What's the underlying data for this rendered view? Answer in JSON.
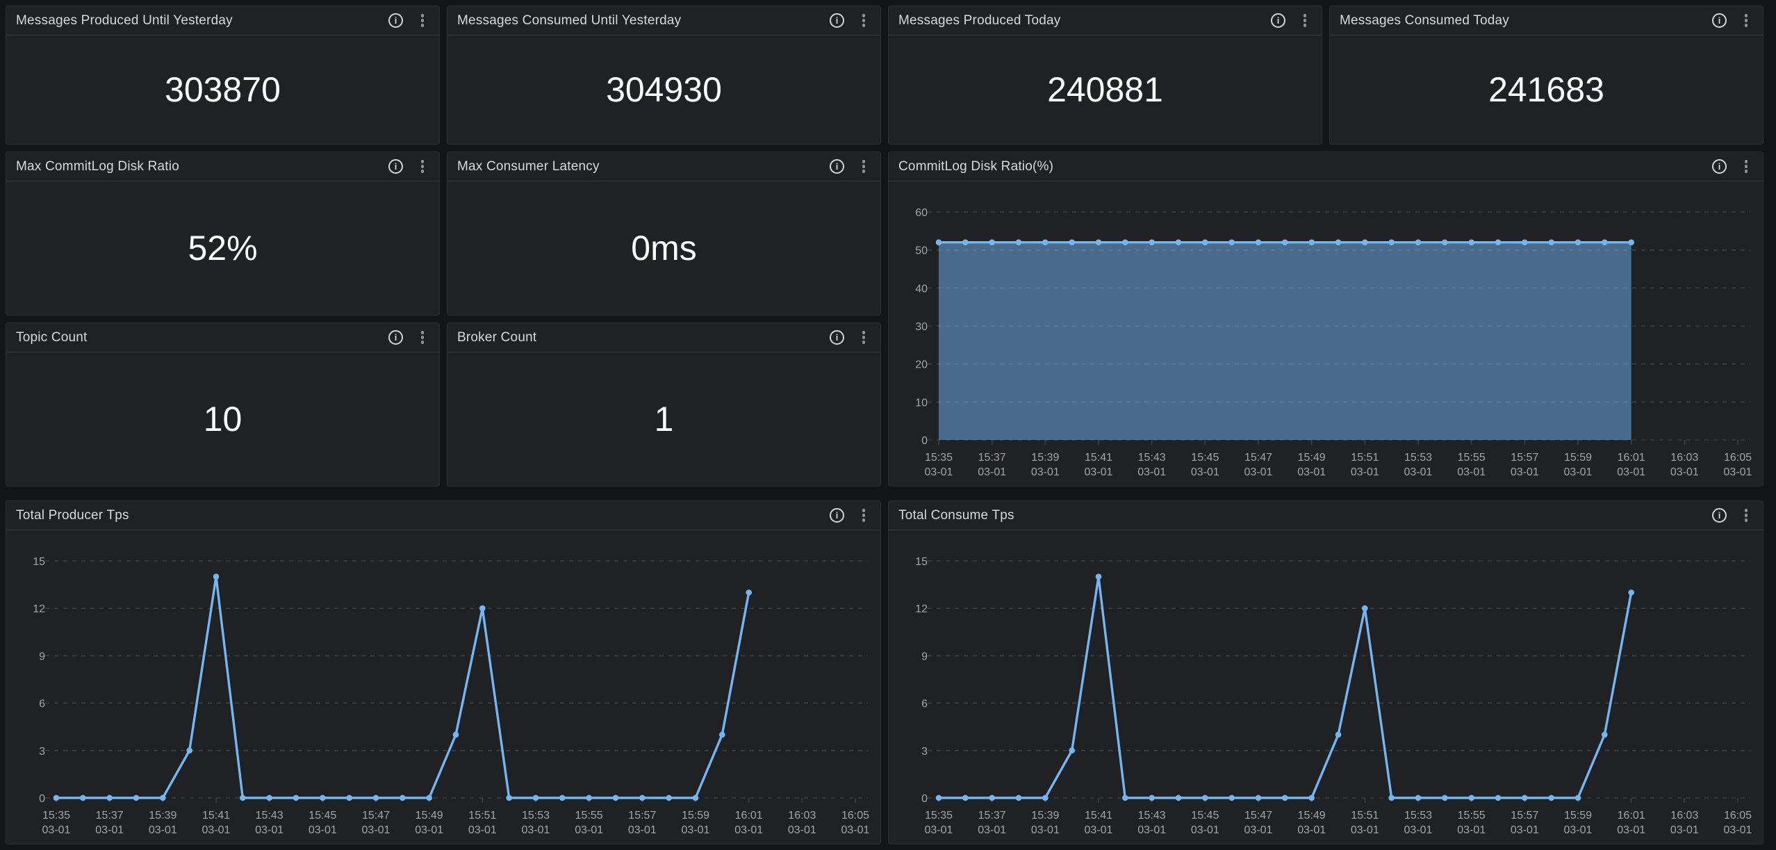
{
  "theme": {
    "page_bg": "#131416",
    "panel_bg": "#202124",
    "panel_border": "#2d2f33",
    "header_divider": "#3a3c41",
    "title_color": "#d8d9da",
    "value_color": "#ffffff",
    "axis_color": "#a2a5aa",
    "grid_color": "#3e4045",
    "line_color": "#73b6f2",
    "area_fill_opacity": 0.5,
    "icon_color": "#d4d5d8",
    "kebab_color": "#8f9297"
  },
  "panels": {
    "produced_yesterday": {
      "title": "Messages Produced Until Yesterday",
      "value": "303870"
    },
    "consumed_yesterday": {
      "title": "Messages Consumed Until Yesterday",
      "value": "304930"
    },
    "produced_today": {
      "title": "Messages Produced Today",
      "value": "240881"
    },
    "consumed_today": {
      "title": "Messages Consumed Today",
      "value": "241683"
    },
    "max_commitlog_ratio": {
      "title": "Max CommitLog Disk Ratio",
      "value": "52%"
    },
    "max_consumer_latency": {
      "title": "Max Consumer Latency",
      "value": "0ms"
    },
    "topic_count": {
      "title": "Topic Count",
      "value": "10"
    },
    "broker_count": {
      "title": "Broker Count",
      "value": "1"
    }
  },
  "header_icons": {
    "info": "info-icon",
    "menu": "kebab-menu-icon"
  },
  "chart_data": [
    {
      "id": "commitlog-disk-ratio",
      "type": "area",
      "title": "CommitLog Disk Ratio(%)",
      "xlabel": "",
      "ylabel": "",
      "ylim": [
        0,
        60
      ],
      "y_tick_step": 10,
      "grid": "dashed",
      "legend": false,
      "x_total_minutes": 30,
      "x_label_interval_minutes": 2,
      "x_tick_labels": [
        "15:35",
        "15:37",
        "15:39",
        "15:41",
        "15:43",
        "15:45",
        "15:47",
        "15:49",
        "15:51",
        "15:53",
        "15:55",
        "15:57",
        "15:59",
        "16:01",
        "16:03",
        "16:05"
      ],
      "x_tick_sublabel": "03-01",
      "point_start_label": "15:35",
      "point_interval_minutes": 1,
      "values": [
        52,
        52,
        52,
        52,
        52,
        52,
        52,
        52,
        52,
        52,
        52,
        52,
        52,
        52,
        52,
        52,
        52,
        52,
        52,
        52,
        52,
        52,
        52,
        52,
        52,
        52,
        52
      ]
    },
    {
      "id": "total-producer-tps",
      "type": "line",
      "title": "Total Producer Tps",
      "xlabel": "",
      "ylabel": "",
      "ylim": [
        0,
        15
      ],
      "y_tick_step": 3,
      "grid": "dashed",
      "legend": false,
      "x_total_minutes": 30,
      "x_label_interval_minutes": 2,
      "x_tick_labels": [
        "15:35",
        "15:37",
        "15:39",
        "15:41",
        "15:43",
        "15:45",
        "15:47",
        "15:49",
        "15:51",
        "15:53",
        "15:55",
        "15:57",
        "15:59",
        "16:01",
        "16:03",
        "16:05"
      ],
      "x_tick_sublabel": "03-01",
      "point_start_label": "15:35",
      "point_interval_minutes": 1,
      "values": [
        0,
        0,
        0,
        0,
        0,
        3,
        14,
        0,
        0,
        0,
        0,
        0,
        0,
        0,
        0,
        4,
        12,
        0,
        0,
        0,
        0,
        0,
        0,
        0,
        0,
        4,
        13
      ]
    },
    {
      "id": "total-consume-tps",
      "type": "line",
      "title": "Total Consume Tps",
      "xlabel": "",
      "ylabel": "",
      "ylim": [
        0,
        15
      ],
      "y_tick_step": 3,
      "grid": "dashed",
      "legend": false,
      "x_total_minutes": 30,
      "x_label_interval_minutes": 2,
      "x_tick_labels": [
        "15:35",
        "15:37",
        "15:39",
        "15:41",
        "15:43",
        "15:45",
        "15:47",
        "15:49",
        "15:51",
        "15:53",
        "15:55",
        "15:57",
        "15:59",
        "16:01",
        "16:03",
        "16:05"
      ],
      "x_tick_sublabel": "03-01",
      "point_start_label": "15:35",
      "point_interval_minutes": 1,
      "values": [
        0,
        0,
        0,
        0,
        0,
        3,
        14,
        0,
        0,
        0,
        0,
        0,
        0,
        0,
        0,
        4,
        12,
        0,
        0,
        0,
        0,
        0,
        0,
        0,
        0,
        4,
        13
      ]
    }
  ]
}
